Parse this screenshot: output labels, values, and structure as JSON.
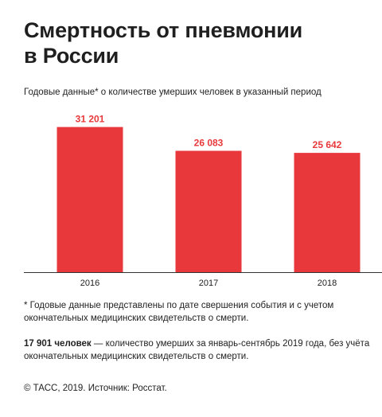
{
  "header": {
    "title_line1": "Смертность от пневмонии",
    "title_line2": "в России",
    "subtitle": "Годовые данные* о количестве умерших человек в указанный период"
  },
  "chart_data": {
    "type": "bar",
    "categories": [
      "2016",
      "2017",
      "2018"
    ],
    "values": [
      31201,
      26083,
      25642
    ],
    "value_labels": [
      "31 201",
      "26 083",
      "25 642"
    ],
    "ylim": [
      0,
      32500
    ],
    "grid": false,
    "bar_color": "#e8383b",
    "label_color": "#e8383b"
  },
  "notes": {
    "footnote": "* Годовые данные представлены по дате свершения события и с учетом окончательных медицинских свидетельств о смерти.",
    "stat_bold": "17 901 человек",
    "stat_rest": " — количество умерших за январь-сентябрь 2019 года, без учёта окончательных медицинских свидетельств о смерти.",
    "source": "© ТАСС, 2019. Источник: Росстат."
  }
}
